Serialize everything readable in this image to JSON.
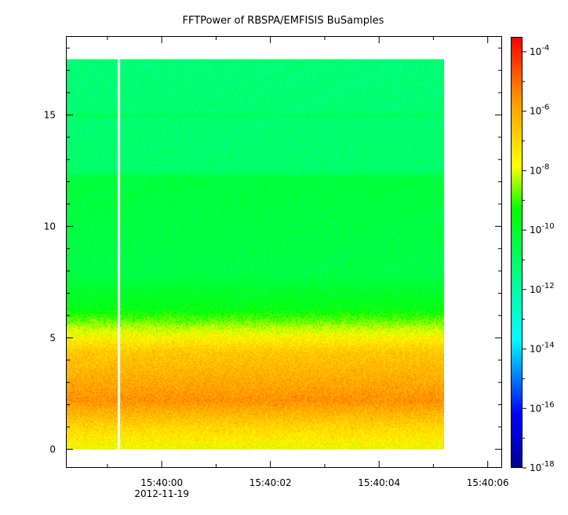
{
  "chart_data": {
    "type": "heatmap",
    "title": "FFTPower of RBSPA/EMFISIS  BuSamples",
    "xlabel": "",
    "ylabel": "",
    "x_ticks": [
      {
        "value": 0,
        "label": "15:40:00",
        "sublabel": "2012-11-19"
      },
      {
        "value": 2,
        "label": "15:40:02",
        "sublabel": ""
      },
      {
        "value": 4,
        "label": "15:40:04",
        "sublabel": ""
      },
      {
        "value": 6,
        "label": "15:40:06",
        "sublabel": ""
      }
    ],
    "x_unit_note": "seconds after 15:40:00",
    "xlim": [
      -1.75,
      6.25
    ],
    "x_data_range": [
      -1.75,
      5.2
    ],
    "x_gap": [
      -0.82,
      -0.78
    ],
    "ylim": [
      -0.8,
      18.5
    ],
    "y_ticks": [
      0,
      5,
      10,
      15
    ],
    "y_data_range": [
      0,
      17.5
    ],
    "colorbar": {
      "scale": "log",
      "range_exp": [
        -18,
        -3.5
      ],
      "tick_exponents": [
        -4,
        -6,
        -8,
        -10,
        -12,
        -14,
        -16,
        -18
      ],
      "tick_labels": [
        "10^-4",
        "10^-6",
        "10^-8",
        "10^-10",
        "10^-12",
        "10^-14",
        "10^-16",
        "10^-18"
      ]
    },
    "power_profile_log10": [
      {
        "freq": 0.0,
        "value": -7.8
      },
      {
        "freq": 1.0,
        "value": -7.0
      },
      {
        "freq": 2.2,
        "value": -5.6
      },
      {
        "freq": 3.2,
        "value": -6.1
      },
      {
        "freq": 4.4,
        "value": -6.7
      },
      {
        "freq": 5.4,
        "value": -8.1
      },
      {
        "freq": 6.3,
        "value": -9.6
      },
      {
        "freq": 8.0,
        "value": -10.5
      },
      {
        "freq": 12.2,
        "value": -10.3
      },
      {
        "freq": 12.5,
        "value": -11.1
      },
      {
        "freq": 17.5,
        "value": -11.3
      }
    ],
    "line_feature": {
      "freq": 15.0,
      "value": -10.8
    }
  }
}
